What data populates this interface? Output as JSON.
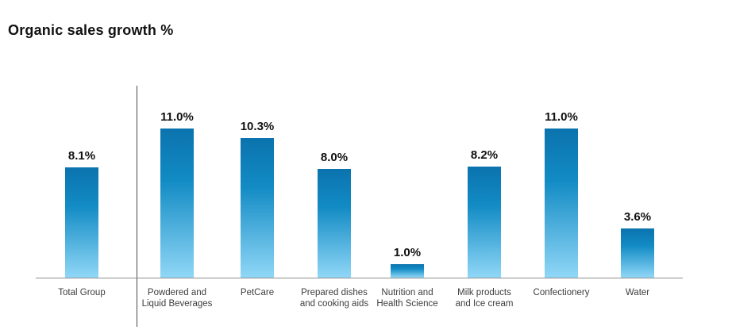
{
  "chart_data": {
    "type": "bar",
    "title": "Organic sales growth %",
    "categories": [
      "Total Group",
      "Powdered and Liquid Beverages",
      "PetCare",
      "Prepared dishes and cooking aids",
      "Nutrition and Health Science",
      "Milk products and Ice cream",
      "Confectionery",
      "Water"
    ],
    "category_label_lines": [
      [
        "Total Group"
      ],
      [
        "Powdered and",
        "Liquid Beverages"
      ],
      [
        "PetCare"
      ],
      [
        "Prepared dishes",
        "and cooking aids"
      ],
      [
        "Nutrition and",
        "Health Science"
      ],
      [
        "Milk products",
        "and Ice cream"
      ],
      [
        "Confectionery"
      ],
      [
        "Water"
      ]
    ],
    "values": [
      8.1,
      11.0,
      10.3,
      8.0,
      1.0,
      8.2,
      11.0,
      3.6
    ],
    "value_labels": [
      "8.1%",
      "11.0%",
      "10.3%",
      "8.0%",
      "1.0%",
      "8.2%",
      "11.0%",
      "3.6%"
    ],
    "unit": "%",
    "xlabel": "",
    "ylabel": "",
    "ylim": [
      0,
      12
    ],
    "grid": false,
    "legend": "none",
    "separator_after_category": "Total Group",
    "colors": {
      "bar_gradient_top": "#0b73ae",
      "bar_gradient_mid": "#128bc4",
      "bar_gradient_bottom": "#90d7f7",
      "value_label": "#111111",
      "category_label": "#3d3d3d",
      "axis_line": "#8f8f8f",
      "separator_line": "#4a4a4a",
      "title": "#111111"
    }
  }
}
